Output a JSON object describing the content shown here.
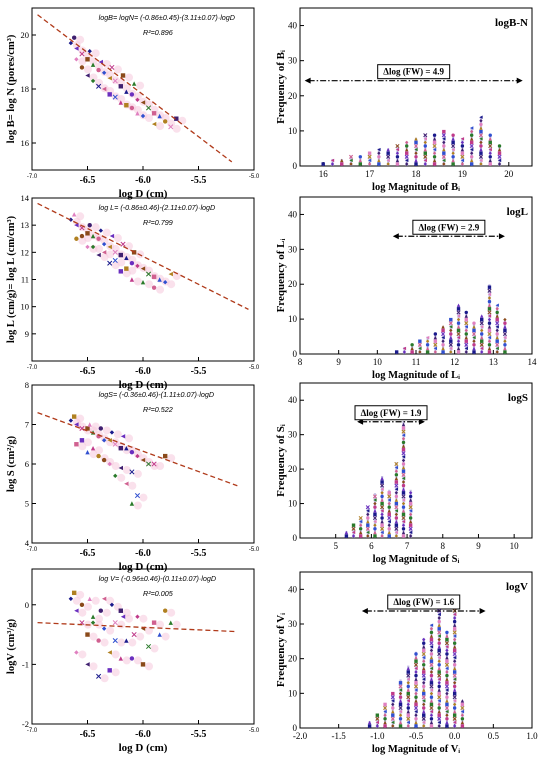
{
  "chart_data": [
    {
      "type": "scatter",
      "panel": "scatter-logB",
      "equation": "logB= logN= (-0.86±0.45)-(3.11±0.07)·logD",
      "r2": "R²=0.896",
      "xlabel": "log D (cm)",
      "ylabel": "log B= log N (pores/cm³)",
      "xlim": [
        -7.0,
        -5.0
      ],
      "ylim": [
        15,
        21
      ],
      "xticks": [
        "-7.0",
        "-6.5",
        "-6.0",
        "-5.5",
        "-5.0"
      ],
      "yticks": [
        "16",
        "18",
        "20"
      ],
      "fit": {
        "x": [
          -6.95,
          -5.2
        ],
        "y": [
          20.75,
          15.3
        ]
      },
      "points": [
        [
          -6.65,
          19.7
        ],
        [
          -6.6,
          19.5
        ],
        [
          -6.55,
          19.3
        ],
        [
          -6.5,
          19.1
        ],
        [
          -6.45,
          18.9
        ],
        [
          -6.4,
          18.7
        ],
        [
          -6.35,
          18.6
        ],
        [
          -6.3,
          18.4
        ],
        [
          -6.25,
          18.3
        ],
        [
          -6.2,
          18.1
        ],
        [
          -6.15,
          17.9
        ],
        [
          -6.1,
          17.8
        ],
        [
          -6.05,
          17.6
        ],
        [
          -6.0,
          17.5
        ],
        [
          -5.95,
          17.3
        ],
        [
          -5.9,
          17.1
        ],
        [
          -5.85,
          17.0
        ],
        [
          -5.8,
          16.8
        ],
        [
          -6.6,
          19.1
        ],
        [
          -6.5,
          18.5
        ],
        [
          -6.4,
          18.1
        ],
        [
          -6.3,
          17.8
        ],
        [
          -6.2,
          17.5
        ],
        [
          -6.55,
          18.8
        ],
        [
          -6.45,
          18.3
        ],
        [
          -6.35,
          18.0
        ],
        [
          -6.25,
          17.7
        ],
        [
          -6.15,
          17.4
        ],
        [
          -6.05,
          17.1
        ],
        [
          -6.62,
          19.9
        ],
        [
          -6.48,
          19.4
        ],
        [
          -6.38,
          19.0
        ],
        [
          -6.28,
          18.8
        ],
        [
          -6.18,
          18.5
        ],
        [
          -6.08,
          18.2
        ],
        [
          -6.1,
          17.3
        ],
        [
          -6.0,
          17.0
        ],
        [
          -5.9,
          16.7
        ],
        [
          -5.75,
          16.6
        ],
        [
          -5.7,
          16.9
        ]
      ]
    },
    {
      "type": "bar",
      "panel": "hist-logB",
      "label": "logB-N",
      "annotation": "Δlog (FW) = 4.9",
      "xlabel": "log Magnitude of Bᵢ",
      "ylabel": "Frequency of Bᵢ",
      "xlim": [
        15.5,
        20.5
      ],
      "ylim": [
        0,
        45
      ],
      "xticks": [
        "16",
        "17",
        "18",
        "19",
        "20"
      ],
      "yticks": [
        "0",
        "10",
        "20",
        "30",
        "40"
      ],
      "arrow_x": [
        15.6,
        20.3
      ],
      "x": [
        16.0,
        16.2,
        16.4,
        16.6,
        16.8,
        17.0,
        17.2,
        17.4,
        17.6,
        17.8,
        18.0,
        18.2,
        18.4,
        18.6,
        18.8,
        19.0,
        19.2,
        19.4,
        19.6,
        19.8
      ],
      "values": [
        1,
        2,
        2,
        3,
        3,
        4,
        5,
        5,
        6,
        7,
        8,
        9,
        9,
        10,
        9,
        8,
        11,
        14,
        9,
        6
      ]
    },
    {
      "type": "scatter",
      "panel": "scatter-logL",
      "equation": "log L= (-0.86±0.46)-(2.11±0.07)·logD",
      "r2": "R²=0.799",
      "xlabel": "log D (cm)",
      "ylabel": "log L (cm/g)= log L (cm/cm³)",
      "xlim": [
        -7.0,
        -5.0
      ],
      "ylim": [
        8,
        14
      ],
      "xticks": [
        "-7.0",
        "-6.5",
        "-6.0",
        "-5.5",
        "-5.0"
      ],
      "yticks": [
        "9",
        "10",
        "11",
        "12",
        "13",
        "14"
      ],
      "fit": {
        "x": [
          -6.95,
          -5.05
        ],
        "y": [
          13.8,
          9.9
        ]
      },
      "points": [
        [
          -6.65,
          13.2
        ],
        [
          -6.6,
          13.0
        ],
        [
          -6.55,
          12.9
        ],
        [
          -6.5,
          12.7
        ],
        [
          -6.45,
          12.6
        ],
        [
          -6.4,
          12.5
        ],
        [
          -6.35,
          12.3
        ],
        [
          -6.3,
          12.2
        ],
        [
          -6.25,
          12.0
        ],
        [
          -6.2,
          11.9
        ],
        [
          -6.15,
          11.8
        ],
        [
          -6.1,
          11.6
        ],
        [
          -6.05,
          11.5
        ],
        [
          -6.0,
          11.4
        ],
        [
          -5.95,
          11.2
        ],
        [
          -5.9,
          11.1
        ],
        [
          -5.85,
          11.0
        ],
        [
          -6.6,
          12.5
        ],
        [
          -6.5,
          12.2
        ],
        [
          -6.4,
          11.9
        ],
        [
          -6.3,
          11.6
        ],
        [
          -6.2,
          11.3
        ],
        [
          -6.1,
          11.0
        ],
        [
          -6.55,
          12.6
        ],
        [
          -6.45,
          12.2
        ],
        [
          -6.35,
          12.0
        ],
        [
          -6.25,
          11.7
        ],
        [
          -6.15,
          11.4
        ],
        [
          -6.62,
          13.4
        ],
        [
          -6.48,
          13.0
        ],
        [
          -6.38,
          12.8
        ],
        [
          -6.28,
          12.6
        ],
        [
          -6.18,
          12.3
        ],
        [
          -6.08,
          12.0
        ],
        [
          -6.0,
          10.9
        ],
        [
          -5.9,
          10.7
        ],
        [
          -5.8,
          10.9
        ],
        [
          -5.75,
          11.2
        ]
      ]
    },
    {
      "type": "bar",
      "panel": "hist-logL",
      "label": "logL",
      "annotation": "Δlog (FW) = 2.9",
      "xlabel": "log Magnitude of Lᵢ",
      "ylabel": "Frequency of Lᵢ",
      "xlim": [
        8,
        14
      ],
      "ylim": [
        0,
        45
      ],
      "xticks": [
        "8",
        "9",
        "10",
        "11",
        "12",
        "13",
        "14"
      ],
      "yticks": [
        "0",
        "10",
        "20",
        "30",
        "40"
      ],
      "arrow_x": [
        10.4,
        13.3
      ],
      "x": [
        10.5,
        10.7,
        10.9,
        11.1,
        11.3,
        11.5,
        11.7,
        11.9,
        12.1,
        12.3,
        12.5,
        12.7,
        12.9,
        13.1,
        13.3
      ],
      "values": [
        1,
        2,
        3,
        4,
        5,
        6,
        8,
        10,
        14,
        12,
        9,
        11,
        20,
        14,
        10
      ]
    },
    {
      "type": "scatter",
      "panel": "scatter-logS",
      "equation": "logS= (-0.36±0.46)-(1.11±0.07)·logD",
      "r2": "R²=0.522",
      "xlabel": "log D (cm)",
      "ylabel": "log S (cm²/g)",
      "xlim": [
        -7.0,
        -5.0
      ],
      "ylim": [
        4,
        8
      ],
      "xticks": [
        "-7.0",
        "-6.5",
        "-6.0",
        "-5.5",
        "-5.0"
      ],
      "yticks": [
        "4",
        "5",
        "6",
        "7",
        "8"
      ],
      "fit": {
        "x": [
          -6.95,
          -5.15
        ],
        "y": [
          7.3,
          5.45
        ]
      },
      "points": [
        [
          -6.65,
          7.1
        ],
        [
          -6.6,
          7.0
        ],
        [
          -6.55,
          6.9
        ],
        [
          -6.5,
          6.9
        ],
        [
          -6.45,
          6.8
        ],
        [
          -6.4,
          6.7
        ],
        [
          -6.35,
          6.6
        ],
        [
          -6.3,
          6.6
        ],
        [
          -6.25,
          6.5
        ],
        [
          -6.2,
          6.4
        ],
        [
          -6.15,
          6.4
        ],
        [
          -6.1,
          6.3
        ],
        [
          -6.05,
          6.2
        ],
        [
          -6.0,
          6.1
        ],
        [
          -5.95,
          6.0
        ],
        [
          -6.6,
          6.5
        ],
        [
          -6.5,
          6.3
        ],
        [
          -6.4,
          6.2
        ],
        [
          -6.3,
          6.0
        ],
        [
          -6.2,
          5.9
        ],
        [
          -6.1,
          5.8
        ],
        [
          -6.55,
          6.6
        ],
        [
          -6.45,
          6.4
        ],
        [
          -6.35,
          6.1
        ],
        [
          -6.25,
          5.7
        ],
        [
          -6.15,
          5.5
        ],
        [
          -6.05,
          5.2
        ],
        [
          -6.62,
          7.2
        ],
        [
          -6.48,
          7.0
        ],
        [
          -6.38,
          6.9
        ],
        [
          -6.28,
          6.8
        ],
        [
          -6.18,
          6.7
        ],
        [
          -5.9,
          6.0
        ],
        [
          -5.8,
          6.2
        ],
        [
          -6.1,
          5.0
        ]
      ]
    },
    {
      "type": "bar",
      "panel": "hist-logS",
      "label": "logS",
      "annotation": "Δlog (FW) = 1.9",
      "xlabel": "log Magnitude of Sᵢ",
      "ylabel": "Frequency of Sᵢ",
      "xlim": [
        4,
        10.5
      ],
      "ylim": [
        0,
        45
      ],
      "xticks": [
        "5",
        "6",
        "7",
        "8",
        "9",
        "10"
      ],
      "yticks": [
        "0",
        "10",
        "20",
        "30",
        "40"
      ],
      "arrow_x": [
        5.6,
        7.5
      ],
      "x": [
        5.3,
        5.5,
        5.7,
        5.9,
        6.1,
        6.3,
        6.5,
        6.7,
        6.9,
        7.1
      ],
      "values": [
        2,
        4,
        6,
        9,
        13,
        18,
        14,
        22,
        34,
        14
      ]
    },
    {
      "type": "scatter",
      "panel": "scatter-logV",
      "equation": "log V= (-0.96±0.46)-(0.11±0.07)·logD",
      "r2": "R²=0.005",
      "xlabel": "log D (cm)",
      "ylabel": "logV (cm³/g)",
      "xlim": [
        -7.0,
        -5.0
      ],
      "ylim": [
        -2,
        0.6
      ],
      "xticks": [
        "-7.0",
        "-6.5",
        "-6.0",
        "-5.5",
        "-5.0"
      ],
      "yticks": [
        "-2",
        "-1",
        "0"
      ],
      "fit": {
        "x": [
          -6.95,
          -5.15
        ],
        "y": [
          -0.3,
          -0.45
        ]
      },
      "points": [
        [
          -6.65,
          0.1
        ],
        [
          -6.6,
          -0.1
        ],
        [
          -6.55,
          -0.3
        ],
        [
          -6.5,
          -0.5
        ],
        [
          -6.45,
          -0.2
        ],
        [
          -6.4,
          -0.6
        ],
        [
          -6.35,
          -0.4
        ],
        [
          -6.3,
          -0.8
        ],
        [
          -6.25,
          -0.3
        ],
        [
          -6.2,
          -0.1
        ],
        [
          -6.15,
          -0.6
        ],
        [
          -6.1,
          -0.9
        ],
        [
          -6.05,
          -0.2
        ],
        [
          -6.0,
          -0.4
        ],
        [
          -5.95,
          -0.7
        ],
        [
          -5.9,
          -0.3
        ],
        [
          -5.85,
          -0.5
        ],
        [
          -5.8,
          -0.1
        ],
        [
          -6.6,
          -0.8
        ],
        [
          -6.5,
          -1.0
        ],
        [
          -6.4,
          -1.2
        ],
        [
          -6.3,
          -1.1
        ],
        [
          -6.2,
          -0.9
        ],
        [
          -6.55,
          0.0
        ],
        [
          -6.45,
          -0.3
        ],
        [
          -6.35,
          0.1
        ],
        [
          -6.25,
          -0.6
        ],
        [
          -6.62,
          0.2
        ],
        [
          -6.48,
          0.1
        ],
        [
          -6.38,
          -0.1
        ],
        [
          -6.28,
          0.0
        ],
        [
          -6.18,
          -0.2
        ],
        [
          -6.08,
          -0.5
        ],
        [
          -6.0,
          -1.0
        ],
        [
          -5.75,
          -0.3
        ]
      ]
    },
    {
      "type": "bar",
      "panel": "hist-logV",
      "label": "logV",
      "annotation": "Δlog (FW) = 1.6",
      "xlabel": "log Magnitude of Vᵢ",
      "ylabel": "Frequency of Vᵢ",
      "xlim": [
        -2.0,
        1.0
      ],
      "ylim": [
        0,
        45
      ],
      "xticks": [
        "-2.0",
        "-1.5",
        "-1.0",
        "-0.5",
        "0.0",
        "0.5",
        "1.0"
      ],
      "yticks": [
        "0",
        "10",
        "20",
        "30",
        "40"
      ],
      "arrow_x": [
        -1.2,
        0.4
      ],
      "x": [
        -1.1,
        -1.0,
        -0.9,
        -0.8,
        -0.7,
        -0.6,
        -0.5,
        -0.4,
        -0.3,
        -0.2,
        -0.1,
        0.0,
        0.1
      ],
      "values": [
        2,
        4,
        7,
        10,
        14,
        18,
        22,
        26,
        30,
        34,
        28,
        36,
        8
      ]
    }
  ]
}
